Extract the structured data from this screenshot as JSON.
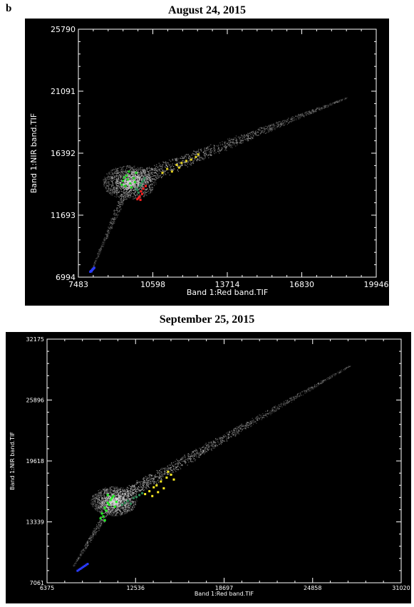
{
  "figure": {
    "panel_label": "b"
  },
  "chart_data": [
    {
      "type": "scatter",
      "title": "August 24, 2015",
      "xlabel": "Band 1:Red band.TIF",
      "ylabel": "Band 1:NIR band.TIF",
      "xlim": [
        7483,
        19946
      ],
      "ylim": [
        6994,
        25790
      ],
      "xticks": [
        "7483",
        "10598",
        "13714",
        "16830",
        "19946"
      ],
      "yticks": [
        "6994",
        "11693",
        "16392",
        "21091",
        "25790"
      ],
      "grid": false,
      "background": "#000000",
      "density_cloud": {
        "color": "#d8d8d8",
        "core": [
          9600,
          14200
        ],
        "upper_arm_end": [
          18700,
          20600
        ],
        "lower_arm_end": [
          8050,
          7650
        ]
      },
      "series": [
        {
          "color": "#2a3cff",
          "points": [
            [
              7980,
              7400
            ],
            [
              8050,
              7520
            ],
            [
              8120,
              7650
            ],
            [
              8010,
              7460
            ],
            [
              8090,
              7600
            ],
            [
              8150,
              7700
            ],
            [
              8030,
              7430
            ],
            [
              8070,
              7560
            ]
          ]
        },
        {
          "color": "#22dd22",
          "points": [
            [
              9350,
              14300
            ],
            [
              9500,
              14700
            ],
            [
              9650,
              14100
            ],
            [
              9800,
              14500
            ],
            [
              9450,
              13900
            ],
            [
              9900,
              14900
            ],
            [
              9550,
              14400
            ],
            [
              9700,
              13800
            ],
            [
              9400,
              14550
            ],
            [
              9850,
              14200
            ],
            [
              9300,
              14000
            ],
            [
              9600,
              15000
            ]
          ]
        },
        {
          "color": "#e0d020",
          "points": [
            [
              11200,
              15200
            ],
            [
              11600,
              15500
            ],
            [
              12000,
              15800
            ],
            [
              12400,
              16100
            ],
            [
              11400,
              15000
            ],
            [
              11800,
              15650
            ],
            [
              12200,
              15900
            ],
            [
              11000,
              14900
            ],
            [
              12500,
              16300
            ],
            [
              11700,
              15300
            ]
          ]
        },
        {
          "color": "#2e8b57",
          "points": [
            [
              9950,
              13600
            ],
            [
              10050,
              13900
            ],
            [
              10150,
              14200
            ],
            [
              10000,
              13400
            ],
            [
              10100,
              14000
            ],
            [
              10200,
              14300
            ],
            [
              9900,
              13700
            ],
            [
              10250,
              14500
            ]
          ]
        },
        {
          "color": "#ff2020",
          "points": [
            [
              9950,
              12900
            ],
            [
              10050,
              13100
            ],
            [
              10150,
              13300
            ],
            [
              10000,
              13000
            ],
            [
              10100,
              13500
            ],
            [
              10200,
              13700
            ],
            [
              10300,
              13900
            ],
            [
              10080,
              12850
            ]
          ]
        }
      ]
    },
    {
      "type": "scatter",
      "title": "September 25, 2015",
      "xlabel": "Band 1:Red band.TIF",
      "ylabel": "Band 1:NIR band.TIF",
      "xlim": [
        6375,
        31020
      ],
      "ylim": [
        7061,
        32175
      ],
      "xticks": [
        "6375",
        "12536",
        "18697",
        "24858",
        "31020"
      ],
      "yticks": [
        "7061",
        "13339",
        "19618",
        "25896",
        "32175"
      ],
      "grid": false,
      "background": "#000000",
      "density_cloud": {
        "color": "#d8d8d8",
        "core": [
          11000,
          15500
        ],
        "upper_arm_end": [
          27500,
          29500
        ],
        "lower_arm_end": [
          8200,
          8800
        ]
      },
      "series": [
        {
          "color": "#2a3cff",
          "points": [
            [
              8500,
              8300
            ],
            [
              8700,
              8500
            ],
            [
              8900,
              8700
            ],
            [
              9100,
              8900
            ],
            [
              8600,
              8400
            ],
            [
              8800,
              8600
            ],
            [
              9000,
              8800
            ],
            [
              9200,
              9000
            ]
          ]
        },
        {
          "color": "#22ff22",
          "points": [
            [
              10200,
              14200
            ],
            [
              10400,
              14800
            ],
            [
              10600,
              15300
            ],
            [
              10800,
              15600
            ],
            [
              11000,
              16000
            ],
            [
              10300,
              13900
            ],
            [
              10500,
              14500
            ],
            [
              10700,
              15100
            ],
            [
              10900,
              15800
            ],
            [
              11100,
              14900
            ],
            [
              10100,
              13700
            ],
            [
              11200,
              15400
            ],
            [
              10600,
              16100
            ],
            [
              10400,
              13500
            ]
          ]
        },
        {
          "color": "#ffee22",
          "points": [
            [
              13200,
              16200
            ],
            [
              13800,
              16900
            ],
            [
              14300,
              17500
            ],
            [
              14700,
              17900
            ],
            [
              15000,
              18200
            ],
            [
              13500,
              16500
            ],
            [
              14000,
              17100
            ],
            [
              14500,
              16800
            ],
            [
              15200,
              17700
            ],
            [
              13700,
              16000
            ],
            [
              14800,
              18500
            ],
            [
              14100,
              16400
            ]
          ]
        },
        {
          "color": "#2e8b57",
          "points": [
            [
              11600,
              15100
            ],
            [
              12000,
              15500
            ],
            [
              12400,
              15800
            ],
            [
              12800,
              16100
            ],
            [
              11800,
              15300
            ],
            [
              12200,
              15200
            ],
            [
              12600,
              15900
            ],
            [
              13000,
              16300
            ]
          ]
        }
      ]
    }
  ]
}
